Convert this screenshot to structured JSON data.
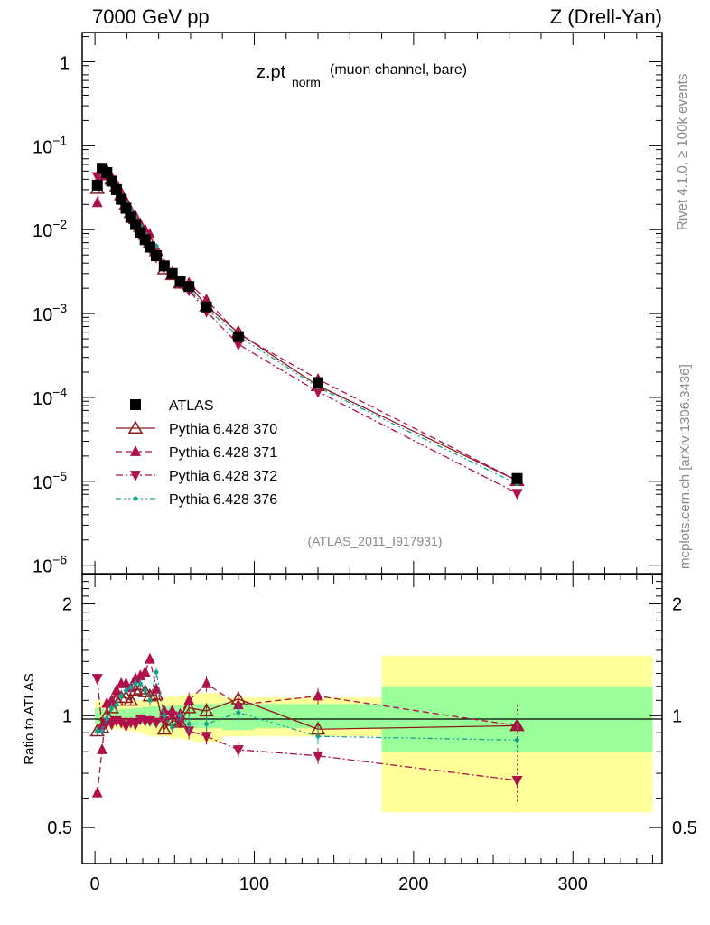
{
  "header": {
    "left": "7000 GeV pp",
    "right": "Z (Drell-Yan)"
  },
  "side_labels": {
    "rivet": "Rivet 4.1.0, ≥ 100k events",
    "mcplots": "mcplots.cern.ch [arXiv:1306.3436]"
  },
  "chart_data": [
    {
      "type": "scatter",
      "panel": "main",
      "title_main": "z.pt",
      "title_sub": "norm",
      "title_suffix": "(muon channel, bare)",
      "yscale": "log",
      "xlim": [
        -8,
        356
      ],
      "ylim_exp": [
        -6.1,
        0.35
      ],
      "yticks": [
        {
          "exp": 0,
          "label": "1",
          "sup": ""
        },
        {
          "exp": -1,
          "label": "10",
          "sup": "−1"
        },
        {
          "exp": -2,
          "label": "10",
          "sup": "−2"
        },
        {
          "exp": -3,
          "label": "10",
          "sup": "−3"
        },
        {
          "exp": -4,
          "label": "10",
          "sup": "−4"
        },
        {
          "exp": -5,
          "label": "10",
          "sup": "−5"
        },
        {
          "exp": -6,
          "label": "10",
          "sup": "−6"
        }
      ],
      "watermark": "(ATLAS_2011_I917931)",
      "legend_position": "bottom-left",
      "x": [
        1.5,
        4.5,
        7.5,
        10.5,
        13.5,
        16.5,
        19.5,
        22.5,
        25.5,
        28.5,
        31.5,
        34.5,
        38.5,
        43.5,
        48.5,
        53.5,
        59.0,
        70.0,
        90.0,
        140.0,
        265.0
      ],
      "series": [
        {
          "name": "ATLAS",
          "style": "data",
          "color": "#000000",
          "values": [
            0.034,
            0.054,
            0.048,
            0.038,
            0.03,
            0.023,
            0.018,
            0.014,
            0.0115,
            0.0092,
            0.0076,
            0.0062,
            0.0049,
            0.0037,
            0.003,
            0.0024,
            0.0021,
            0.0012,
            0.00053,
            0.00015,
            1.08e-05
          ]
        },
        {
          "name": "Pythia 6.428 370",
          "style": "solid",
          "marker": "triangle-open",
          "color": "#8b1a1a",
          "values": [
            0.031,
            0.05,
            0.048,
            0.04,
            0.033,
            0.026,
            0.02,
            0.016,
            0.0135,
            0.0108,
            0.0088,
            0.007,
            0.0056,
            0.0034,
            0.0029,
            0.0023,
            0.0022,
            0.00123,
            0.00059,
            0.000138,
            1.02e-05
          ]
        },
        {
          "name": "Pythia 6.428 371",
          "style": "dashed",
          "marker": "triangle-up",
          "color": "#b0104c",
          "values": [
            0.021,
            0.044,
            0.052,
            0.042,
            0.035,
            0.028,
            0.022,
            0.017,
            0.0145,
            0.0118,
            0.01,
            0.0088,
            0.0058,
            0.0038,
            0.0031,
            0.0024,
            0.0023,
            0.00146,
            0.00057,
            0.000165,
            1.02e-05
          ]
        },
        {
          "name": "Pythia 6.428 372",
          "style": "dashdot",
          "marker": "triangle-down",
          "color": "#b0104c",
          "values": [
            0.043,
            0.05,
            0.046,
            0.036,
            0.029,
            0.022,
            0.017,
            0.0135,
            0.011,
            0.009,
            0.0074,
            0.006,
            0.0047,
            0.0036,
            0.003,
            0.0023,
            0.0019,
            0.00106,
            0.00043,
            0.000117,
            7.2e-06
          ]
        },
        {
          "name": "Pythia 6.428 376",
          "style": "dashdotdot",
          "marker": "dot",
          "color": "#1a9e8e",
          "values": [
            0.031,
            0.049,
            0.047,
            0.04,
            0.032,
            0.026,
            0.021,
            0.017,
            0.014,
            0.0112,
            0.0089,
            0.0068,
            0.0064,
            0.0037,
            0.0028,
            0.0024,
            0.002,
            0.00114,
            0.00054,
            0.000132,
            9.3e-06
          ]
        }
      ]
    },
    {
      "type": "line",
      "panel": "ratio",
      "ylabel": "Ratio to ATLAS",
      "xlim": [
        -8,
        356
      ],
      "ylim": [
        0.4,
        2.4
      ],
      "xticks": [
        0,
        100,
        200,
        300
      ],
      "yticks": [
        0.5,
        1,
        2
      ],
      "band_edges": [
        0,
        3,
        6,
        9,
        12,
        15,
        18,
        21,
        24,
        27,
        30,
        33,
        36,
        41,
        46,
        51,
        56,
        62,
        80,
        100,
        180,
        350
      ],
      "band_green": [
        0.05,
        0.045,
        0.04,
        0.04,
        0.04,
        0.04,
        0.045,
        0.045,
        0.05,
        0.05,
        0.055,
        0.06,
        0.06,
        0.06,
        0.065,
        0.065,
        0.07,
        0.075,
        0.085,
        0.075,
        0.2
      ],
      "band_yellow": [
        0.1,
        0.09,
        0.08,
        0.08,
        0.08,
        0.08,
        0.09,
        0.09,
        0.1,
        0.1,
        0.11,
        0.12,
        0.12,
        0.12,
        0.13,
        0.13,
        0.14,
        0.15,
        0.12,
        0.12,
        0.45
      ],
      "series": [
        {
          "name": "Pythia 6.428 370",
          "values": [
            0.91,
            0.93,
            1.0,
            1.05,
            1.1,
            1.12,
            1.12,
            1.1,
            1.17,
            1.18,
            1.16,
            1.13,
            1.14,
            0.92,
            0.97,
            0.96,
            1.05,
            1.03,
            1.11,
            0.92,
            0.94
          ]
        },
        {
          "name": "Pythia 6.428 371",
          "values": [
            0.62,
            0.81,
            1.08,
            1.1,
            1.17,
            1.22,
            1.22,
            1.19,
            1.26,
            1.28,
            1.31,
            1.42,
            1.18,
            1.03,
            1.03,
            1.01,
            1.1,
            1.22,
            1.07,
            1.13,
            0.94
          ]
        },
        {
          "name": "Pythia 6.428 372",
          "values": [
            1.26,
            0.92,
            0.96,
            0.95,
            0.97,
            0.96,
            0.94,
            0.96,
            0.95,
            0.98,
            0.97,
            0.97,
            0.96,
            0.97,
            1.0,
            0.96,
            0.91,
            0.88,
            0.81,
            0.78,
            0.67
          ]
        },
        {
          "name": "Pythia 6.428 376",
          "values": [
            0.91,
            0.91,
            0.98,
            1.05,
            1.07,
            1.13,
            1.17,
            1.19,
            1.22,
            1.22,
            1.17,
            1.1,
            1.31,
            1.0,
            0.93,
            1.0,
            0.95,
            0.95,
            1.02,
            0.88,
            0.86
          ]
        }
      ]
    }
  ]
}
